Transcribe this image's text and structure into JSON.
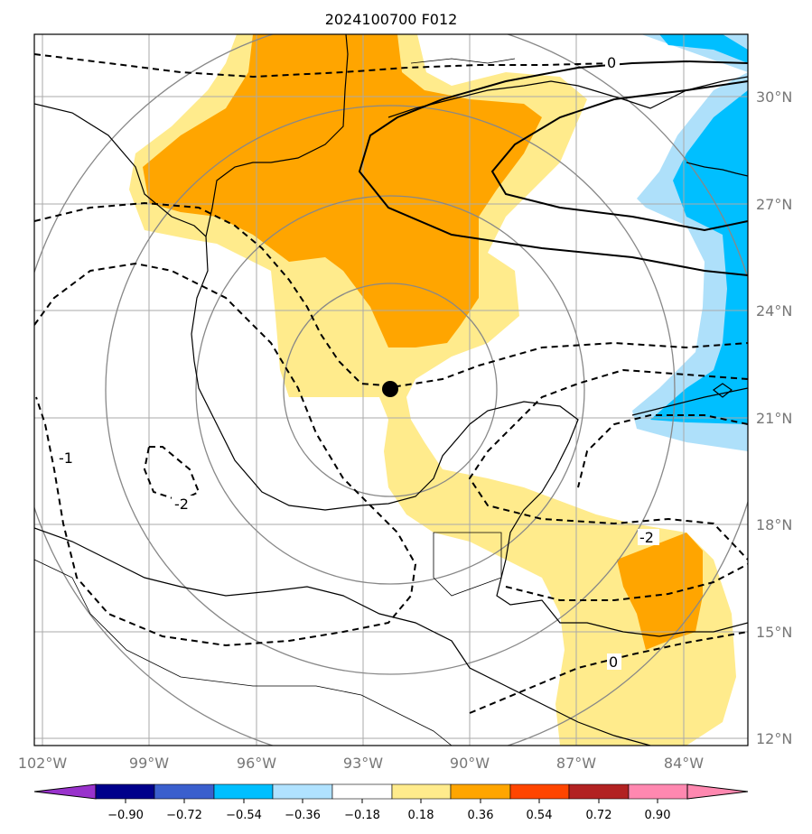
{
  "title": "2024100700 F012",
  "map": {
    "lon_range": [
      -102,
      -82
    ],
    "lat_range": [
      12,
      32
    ],
    "lon_labels": [
      "102°W",
      "99°W",
      "96°W",
      "93°W",
      "90°W",
      "87°W",
      "84°W"
    ],
    "lat_labels": [
      "30°N",
      "27°N",
      "24°N",
      "21°N",
      "18°N",
      "15°N",
      "12°N"
    ],
    "storm_center": {
      "lon": -92.2,
      "lat": 21.8
    },
    "contour_labels": [
      "0",
      "-1",
      "-2",
      "-2",
      "0"
    ],
    "shading_colors": {
      "light_yellow": "#ffeb8c",
      "orange": "#ffa500",
      "light_blue": "#aee0fa",
      "blue": "#00bfff"
    }
  },
  "colorbar": {
    "ticks": [
      "−0.90",
      "−0.72",
      "−0.54",
      "−0.36",
      "−0.18",
      "0.18",
      "0.36",
      "0.54",
      "0.72",
      "0.90"
    ],
    "colors": [
      "#9932cc",
      "#00008b",
      "#3a5fcd",
      "#00bfff",
      "#b0e2ff",
      "#ffffff",
      "#ffeb8c",
      "#ffa500",
      "#ff4500",
      "#b22222",
      "#ff88b0"
    ]
  }
}
